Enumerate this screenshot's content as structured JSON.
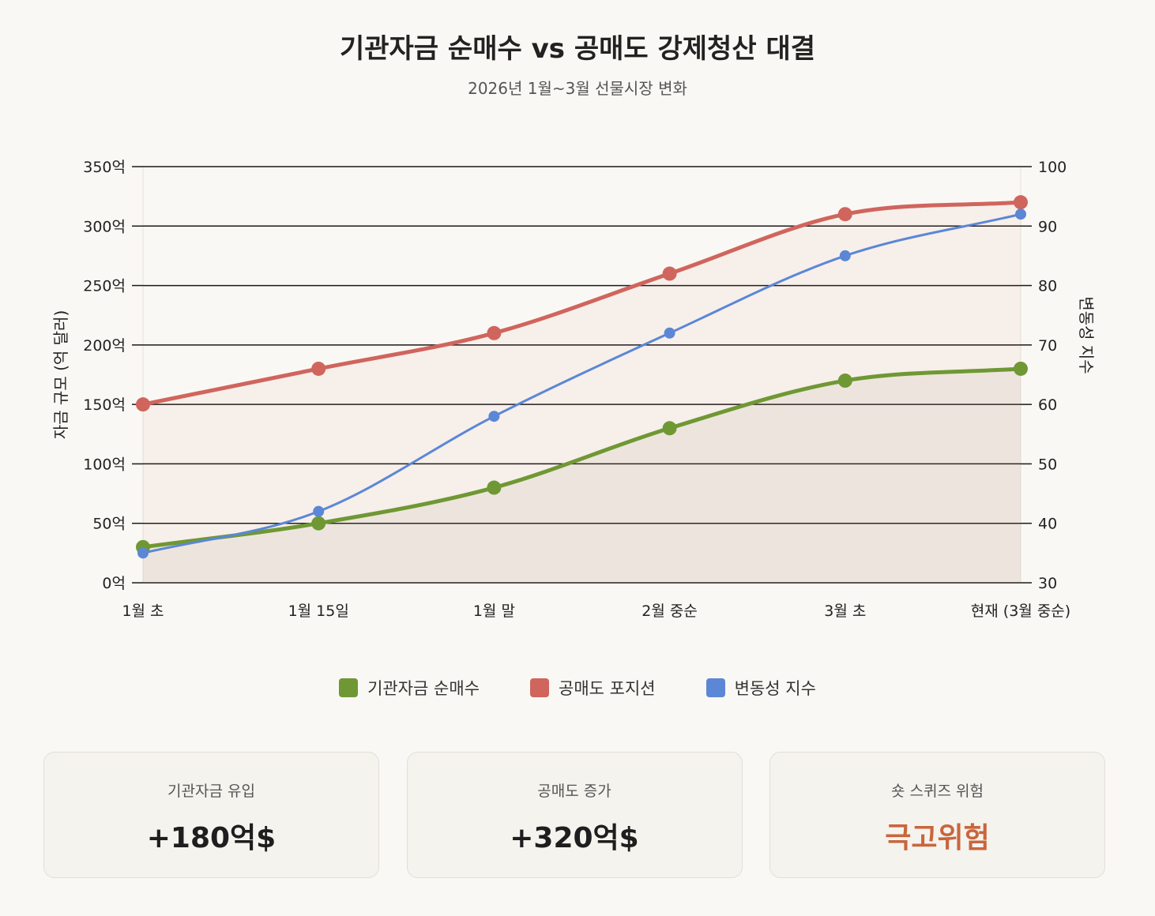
{
  "header": {
    "title": "기관자금 순매수 vs 공매도 강제청산 대결",
    "subtitle": "2026년 1월~3월 선물시장 변화"
  },
  "chart_data": {
    "type": "line",
    "title": "기관자금 순매수 vs 공매도 강제청산 대결",
    "subtitle": "2026년 1월~3월 선물시장 변화",
    "categories": [
      "1월 초",
      "1월 15일",
      "1월 말",
      "2월 중순",
      "3월 초",
      "현재 (3월 중순)"
    ],
    "ylabel": "자금 규모 (억 달러)",
    "y2label": "변동성 지수",
    "ylim": [
      0,
      350
    ],
    "y2lim": [
      30,
      100
    ],
    "yticks": [
      "0억",
      "50억",
      "100억",
      "150억",
      "200억",
      "250억",
      "300억",
      "350억"
    ],
    "y2ticks": [
      "30",
      "40",
      "50",
      "60",
      "70",
      "80",
      "90",
      "100"
    ],
    "grid": true,
    "legend_position": "bottom",
    "series": [
      {
        "name": "기관자금 순매수",
        "axis": "left",
        "filled": true,
        "color": "#6f9834",
        "values": [
          30,
          50,
          80,
          130,
          170,
          180
        ]
      },
      {
        "name": "공매도 포지션",
        "axis": "left",
        "filled": true,
        "color": "#d0655d",
        "values": [
          150,
          180,
          210,
          260,
          310,
          320
        ]
      },
      {
        "name": "변동성 지수",
        "axis": "right",
        "filled": false,
        "color": "#5b87d6",
        "values": [
          35,
          42,
          58,
          72,
          85,
          92
        ]
      }
    ]
  },
  "legend": [
    {
      "label": "기관자금 순매수",
      "color": "#6f9834"
    },
    {
      "label": "공매도 포지션",
      "color": "#d0655d"
    },
    {
      "label": "변동성 지수",
      "color": "#5b87d6"
    }
  ],
  "cards": [
    {
      "label": "기관자금 유입",
      "value": "+180억$",
      "color": "#1e1e1e"
    },
    {
      "label": "공매도 증가",
      "value": "+320억$",
      "color": "#1e1e1e"
    },
    {
      "label": "숏 스퀴즈 위험",
      "value": "극고위험",
      "color": "#c8663c"
    }
  ]
}
